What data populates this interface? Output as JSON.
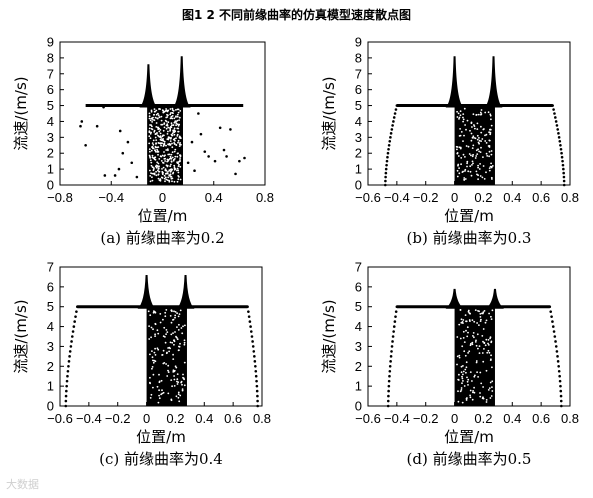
{
  "figure_title": "图1 2 不同前缘曲率的仿真模型速度散点图",
  "watermark": "大数据",
  "colors": {
    "points": "#000000",
    "axes": "#000000",
    "background": "#ffffff"
  },
  "chart_data": [
    {
      "type": "scatter",
      "caption": "(a) 前缘曲率为0.2",
      "xlabel": "位置/m",
      "ylabel": "流速/(m/s)",
      "xlim": [
        -0.8,
        0.8
      ],
      "ylim": [
        0,
        9
      ],
      "xticks": [
        -0.8,
        -0.4,
        0,
        0.4,
        0.8
      ],
      "xtick_labels": [
        "−0.8",
        "−0.4",
        "0",
        "0.4",
        "0.8"
      ],
      "yticks": [
        0,
        1,
        2,
        3,
        4,
        5,
        6,
        7,
        8,
        9
      ],
      "grid": false,
      "plateau_y": 5.0,
      "line_span": [
        -0.6,
        0.63
      ],
      "body_span": [
        -0.12,
        0.16
      ],
      "peaks": [
        {
          "x": -0.11,
          "y": 7.6
        },
        {
          "x": 0.15,
          "y": 8.1
        }
      ],
      "outlier_points": [
        [
          -0.63,
          4.0
        ],
        [
          -0.64,
          3.7
        ],
        [
          -0.6,
          2.5
        ],
        [
          -0.51,
          3.7
        ],
        [
          -0.46,
          4.9
        ],
        [
          -0.45,
          0.6
        ],
        [
          -0.37,
          0.6
        ],
        [
          -0.34,
          1.0
        ],
        [
          -0.31,
          2.0
        ],
        [
          -0.33,
          3.4
        ],
        [
          -0.27,
          2.7
        ],
        [
          -0.24,
          1.4
        ],
        [
          -0.2,
          0.5
        ],
        [
          0.2,
          1.4
        ],
        [
          0.23,
          2.7
        ],
        [
          0.25,
          0.9
        ],
        [
          0.28,
          4.5
        ],
        [
          0.3,
          3.2
        ],
        [
          0.33,
          2.1
        ],
        [
          0.36,
          1.8
        ],
        [
          0.41,
          1.5
        ],
        [
          0.45,
          3.6
        ],
        [
          0.48,
          2.2
        ],
        [
          0.5,
          1.8
        ],
        [
          0.53,
          3.5
        ],
        [
          0.57,
          0.7
        ],
        [
          0.6,
          1.5
        ],
        [
          0.64,
          1.7
        ]
      ]
    },
    {
      "type": "scatter",
      "caption": "(b) 前缘曲率为0.3",
      "xlabel": "位置/m",
      "ylabel": "流速/(m/s)",
      "xlim": [
        -0.6,
        0.8
      ],
      "ylim": [
        0,
        9
      ],
      "xticks": [
        -0.6,
        -0.4,
        -0.2,
        0,
        0.2,
        0.4,
        0.6,
        0.8
      ],
      "xtick_labels": [
        "−0.6",
        "−0.4",
        "−0.2",
        "0",
        "0.2",
        "0.4",
        "0.6",
        "0.8"
      ],
      "yticks": [
        0,
        1,
        2,
        3,
        4,
        5,
        6,
        7,
        8,
        9
      ],
      "grid": false,
      "plateau_y": 5.0,
      "line_span": [
        -0.4,
        0.68
      ],
      "body_span": [
        0.0,
        0.28
      ],
      "peaks": [
        {
          "x": 0.0,
          "y": 8.1
        },
        {
          "x": 0.27,
          "y": 8.1
        }
      ],
      "edge_curves": [
        {
          "x0": -0.48,
          "y0": 0.0,
          "x1": -0.4,
          "y1": 5.0
        },
        {
          "x0": 0.76,
          "y0": 0.0,
          "x1": 0.68,
          "y1": 5.0
        }
      ]
    },
    {
      "type": "scatter",
      "caption": "(c) 前缘曲率为0.4",
      "xlabel": "位置/m",
      "ylabel": "流速/(m/s)",
      "xlim": [
        -0.6,
        0.8
      ],
      "ylim": [
        0,
        7
      ],
      "xticks": [
        -0.6,
        -0.4,
        -0.2,
        0,
        0.2,
        0.4,
        0.6,
        0.8
      ],
      "xtick_labels": [
        "−0.6",
        "−0.4",
        "−0.2",
        "0",
        "0.2",
        "0.4",
        "0.6",
        "0.8"
      ],
      "yticks": [
        0,
        1,
        2,
        3,
        4,
        5,
        6,
        7
      ],
      "grid": false,
      "plateau_y": 5.0,
      "line_span": [
        -0.48,
        0.7
      ],
      "body_span": [
        0.0,
        0.28
      ],
      "peaks": [
        {
          "x": 0.0,
          "y": 6.6
        },
        {
          "x": 0.27,
          "y": 6.6
        }
      ],
      "edge_curves": [
        {
          "x0": -0.56,
          "y0": 0.0,
          "x1": -0.48,
          "y1": 5.0
        },
        {
          "x0": 0.77,
          "y0": 0.0,
          "x1": 0.7,
          "y1": 5.0
        }
      ]
    },
    {
      "type": "scatter",
      "caption": "(d) 前缘曲率为0.5",
      "xlabel": "位置/m",
      "ylabel": "流速/(m/s)",
      "xlim": [
        -0.6,
        0.8
      ],
      "ylim": [
        0,
        7
      ],
      "xticks": [
        -0.6,
        -0.4,
        -0.2,
        0,
        0.2,
        0.4,
        0.6,
        0.8
      ],
      "xtick_labels": [
        "−0.6",
        "−0.4",
        "−0.2",
        "0",
        "0.2",
        "0.4",
        "0.6",
        "0.8"
      ],
      "yticks": [
        0,
        1,
        2,
        3,
        4,
        5,
        6,
        7
      ],
      "grid": false,
      "plateau_y": 5.0,
      "line_span": [
        -0.4,
        0.66
      ],
      "body_span": [
        0.0,
        0.28
      ],
      "peaks": [
        {
          "x": 0.0,
          "y": 5.9
        },
        {
          "x": 0.28,
          "y": 5.9
        }
      ],
      "edge_curves": [
        {
          "x0": -0.46,
          "y0": 0.0,
          "x1": -0.4,
          "y1": 5.0
        },
        {
          "x0": 0.74,
          "y0": 0.0,
          "x1": 0.66,
          "y1": 5.0
        }
      ]
    }
  ]
}
